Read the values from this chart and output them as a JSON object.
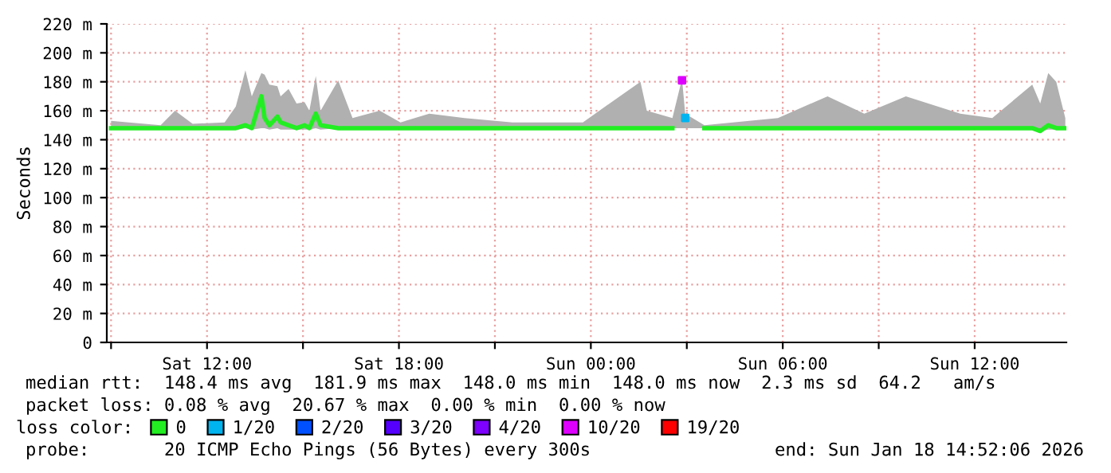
{
  "chart_data": {
    "type": "line",
    "ylabel": "Seconds",
    "legend_title": "loss color:",
    "legend": "bottom",
    "grid": true,
    "line_style": "solid",
    "xlim": [
      "2026-01-17T08:52",
      "2026-01-18T14:52"
    ],
    "xticks": [
      {
        "value": "2026-01-17T09:00",
        "label": null
      },
      {
        "value": "2026-01-17T12:00",
        "label": "Sat 12:00"
      },
      {
        "value": "2026-01-17T15:00",
        "label": null
      },
      {
        "value": "2026-01-17T18:00",
        "label": "Sat 18:00"
      },
      {
        "value": "2026-01-17T21:00",
        "label": null
      },
      {
        "value": "2026-01-18T00:00",
        "label": "Sun 00:00"
      },
      {
        "value": "2026-01-18T03:00",
        "label": null
      },
      {
        "value": "2026-01-18T06:00",
        "label": "Sun 06:00"
      },
      {
        "value": "2026-01-18T09:00",
        "label": null
      },
      {
        "value": "2026-01-18T12:00",
        "label": "Sun 12:00"
      }
    ],
    "ylim": [
      0,
      220
    ],
    "yticks": [
      0,
      {
        "value": 20,
        "label": "20 m"
      },
      {
        "value": 40,
        "label": "40 m"
      },
      {
        "value": 60,
        "label": "60 m"
      },
      {
        "value": 80,
        "label": "80 m"
      },
      {
        "value": 100,
        "label": "100 m"
      },
      {
        "value": 120,
        "label": "120 m"
      },
      {
        "value": 140,
        "label": "140 m"
      },
      {
        "value": 160,
        "label": "160 m"
      },
      {
        "value": 180,
        "label": "180 m"
      },
      {
        "value": 200,
        "label": "200 m"
      },
      {
        "value": 220,
        "label": "220 m"
      }
    ],
    "x": [
      "2026-01-17T09:00",
      "2026-01-17T09:33",
      "2026-01-17T10:33",
      "2026-01-17T11:00",
      "2026-01-17T11:33",
      "2026-01-17T12:33",
      "2026-01-17T12:54",
      "2026-01-17T13:12",
      "2026-01-17T13:24",
      "2026-01-17T13:42",
      "2026-01-17T13:48",
      "2026-01-17T13:57",
      "2026-01-17T14:12",
      "2026-01-17T14:18",
      "2026-01-17T14:33",
      "2026-01-17T14:48",
      "2026-01-17T15:03",
      "2026-01-17T15:12",
      "2026-01-17T15:24",
      "2026-01-17T15:33",
      "2026-01-17T16:06",
      "2026-01-17T16:33",
      "2026-01-17T17:24",
      "2026-01-17T18:03",
      "2026-01-17T18:57",
      "2026-01-17T20:03",
      "2026-01-17T21:33",
      "2026-01-17T23:45",
      "2026-01-18T01:33",
      "2026-01-18T01:45",
      "2026-01-18T02:33",
      "2026-01-18T02:51",
      "2026-01-18T02:57",
      "2026-01-18T03:33",
      "2026-01-18T05:51",
      "2026-01-18T07:24",
      "2026-01-18T08:33",
      "2026-01-18T09:51",
      "2026-01-18T11:33",
      "2026-01-18T12:33",
      "2026-01-18T13:48",
      "2026-01-18T14:03",
      "2026-01-18T14:18",
      "2026-01-18T14:33",
      "2026-01-18T14:50"
    ],
    "series": [
      {
        "name": "0",
        "color": "#22ee22",
        "values": [
          148,
          148,
          148,
          148,
          148,
          148,
          148,
          150,
          148,
          170,
          155,
          150,
          156,
          152,
          150,
          148,
          150,
          148,
          158,
          150,
          148,
          148,
          148,
          148,
          148,
          148,
          148,
          148,
          148,
          148,
          148,
          null,
          null,
          148,
          148,
          148,
          148,
          148,
          148,
          148,
          148,
          146,
          150,
          148,
          148
        ],
        "lower": [
          148,
          148,
          148,
          148,
          148,
          148,
          147,
          148,
          147,
          148,
          148,
          147,
          148,
          147,
          147,
          147,
          147,
          147,
          148,
          147,
          148,
          148,
          148,
          148,
          148,
          148,
          148,
          148,
          148,
          148,
          148,
          148,
          148,
          148,
          148,
          148,
          148,
          148,
          148,
          148,
          147,
          146,
          147,
          147,
          148
        ],
        "upper": [
          153,
          152,
          150,
          160,
          151,
          152,
          163,
          188,
          170,
          186,
          185,
          178,
          177,
          170,
          175,
          165,
          166,
          160,
          184,
          160,
          181,
          155,
          160,
          152,
          158,
          155,
          152,
          152,
          180,
          160,
          155,
          182,
          158,
          150,
          155,
          170,
          158,
          170,
          158,
          155,
          178,
          165,
          186,
          180,
          155
        ]
      },
      {
        "name": "1/20",
        "type": "scatter",
        "color": "#00b4f0",
        "values": [
          null,
          null,
          null,
          null,
          null,
          null,
          null,
          null,
          null,
          null,
          null,
          null,
          null,
          null,
          null,
          null,
          null,
          null,
          null,
          null,
          null,
          null,
          null,
          null,
          null,
          null,
          null,
          null,
          null,
          null,
          null,
          null,
          155,
          null,
          null,
          null,
          null,
          null,
          null,
          null,
          null,
          null,
          null,
          null,
          null
        ]
      },
      {
        "name": "2/20",
        "type": "scatter",
        "color": "#0050ff",
        "values": [
          null,
          null,
          null,
          null,
          null,
          null,
          null,
          null,
          null,
          null,
          null,
          null,
          null,
          null,
          null,
          null,
          null,
          null,
          null,
          null,
          null,
          null,
          null,
          null,
          null,
          null,
          null,
          null,
          null,
          null,
          null,
          null,
          null,
          null,
          null,
          null,
          null,
          null,
          null,
          null,
          null,
          null,
          null,
          null,
          null
        ]
      },
      {
        "name": "3/20",
        "type": "scatter",
        "color": "#5500ff",
        "values": [
          null,
          null,
          null,
          null,
          null,
          null,
          null,
          null,
          null,
          null,
          null,
          null,
          null,
          null,
          null,
          null,
          null,
          null,
          null,
          null,
          null,
          null,
          null,
          null,
          null,
          null,
          null,
          null,
          null,
          null,
          null,
          null,
          null,
          null,
          null,
          null,
          null,
          null,
          null,
          null,
          null,
          null,
          null,
          null,
          null
        ]
      },
      {
        "name": "4/20",
        "type": "scatter",
        "color": "#7e00ff",
        "values": [
          null,
          null,
          null,
          null,
          null,
          null,
          null,
          null,
          null,
          null,
          null,
          null,
          null,
          null,
          null,
          null,
          null,
          null,
          null,
          null,
          null,
          null,
          null,
          null,
          null,
          null,
          null,
          null,
          null,
          null,
          null,
          null,
          null,
          null,
          null,
          null,
          null,
          null,
          null,
          null,
          null,
          null,
          null,
          null,
          null
        ]
      },
      {
        "name": "10/20",
        "type": "scatter",
        "color": "#dd00ff",
        "values": [
          null,
          null,
          null,
          null,
          null,
          null,
          null,
          null,
          null,
          null,
          null,
          null,
          null,
          null,
          null,
          null,
          null,
          null,
          null,
          null,
          null,
          null,
          null,
          null,
          null,
          null,
          null,
          null,
          null,
          null,
          null,
          181,
          null,
          null,
          null,
          null,
          null,
          null,
          null,
          null,
          null,
          null,
          null,
          null,
          null
        ]
      },
      {
        "name": "19/20",
        "type": "scatter",
        "color": "#ff0000",
        "values": [
          null,
          null,
          null,
          null,
          null,
          null,
          null,
          null,
          null,
          null,
          null,
          null,
          null,
          null,
          null,
          null,
          null,
          null,
          null,
          null,
          null,
          null,
          null,
          null,
          null,
          null,
          null,
          null,
          null,
          null,
          null,
          null,
          null,
          null,
          null,
          null,
          null,
          null,
          null,
          null,
          null,
          null,
          null,
          null,
          null
        ]
      }
    ],
    "annotations": [
      "median rtt:  148.4 ms avg  181.9 ms max  148.0 ms min  148.0 ms now  2.3 ms sd  64.2   am/s",
      "packet loss: 0.08 % avg  20.67 % max  0.00 % min  0.00 % now",
      "probe:       20 ICMP Echo Pings (56 Bytes) every 300s",
      "end: Sun Jan 18 14:52:06 2026"
    ]
  }
}
